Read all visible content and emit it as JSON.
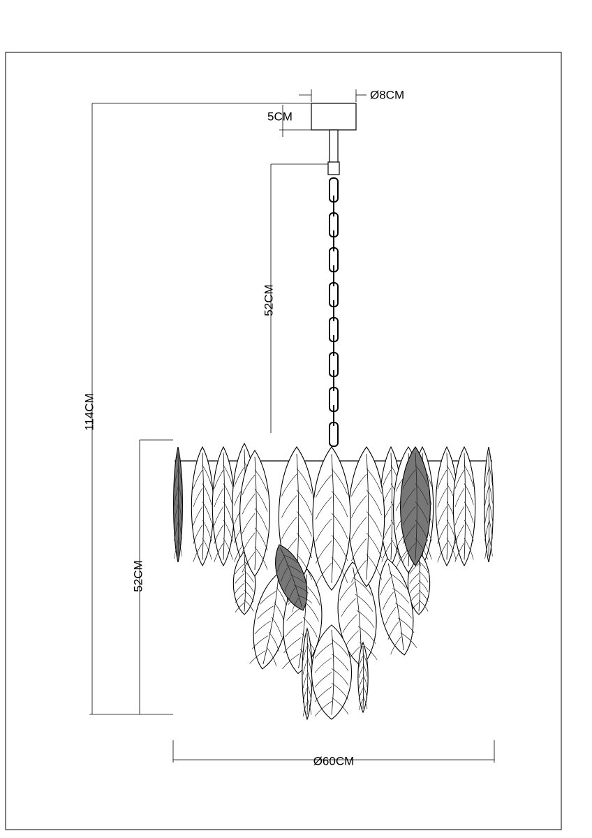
{
  "dimensions": {
    "canopy_diameter": "Ø8CM",
    "canopy_height": "5CM",
    "chain_length": "52CM",
    "total_height": "114CM",
    "body_height": "52CM",
    "body_diameter": "Ø60CM"
  }
}
